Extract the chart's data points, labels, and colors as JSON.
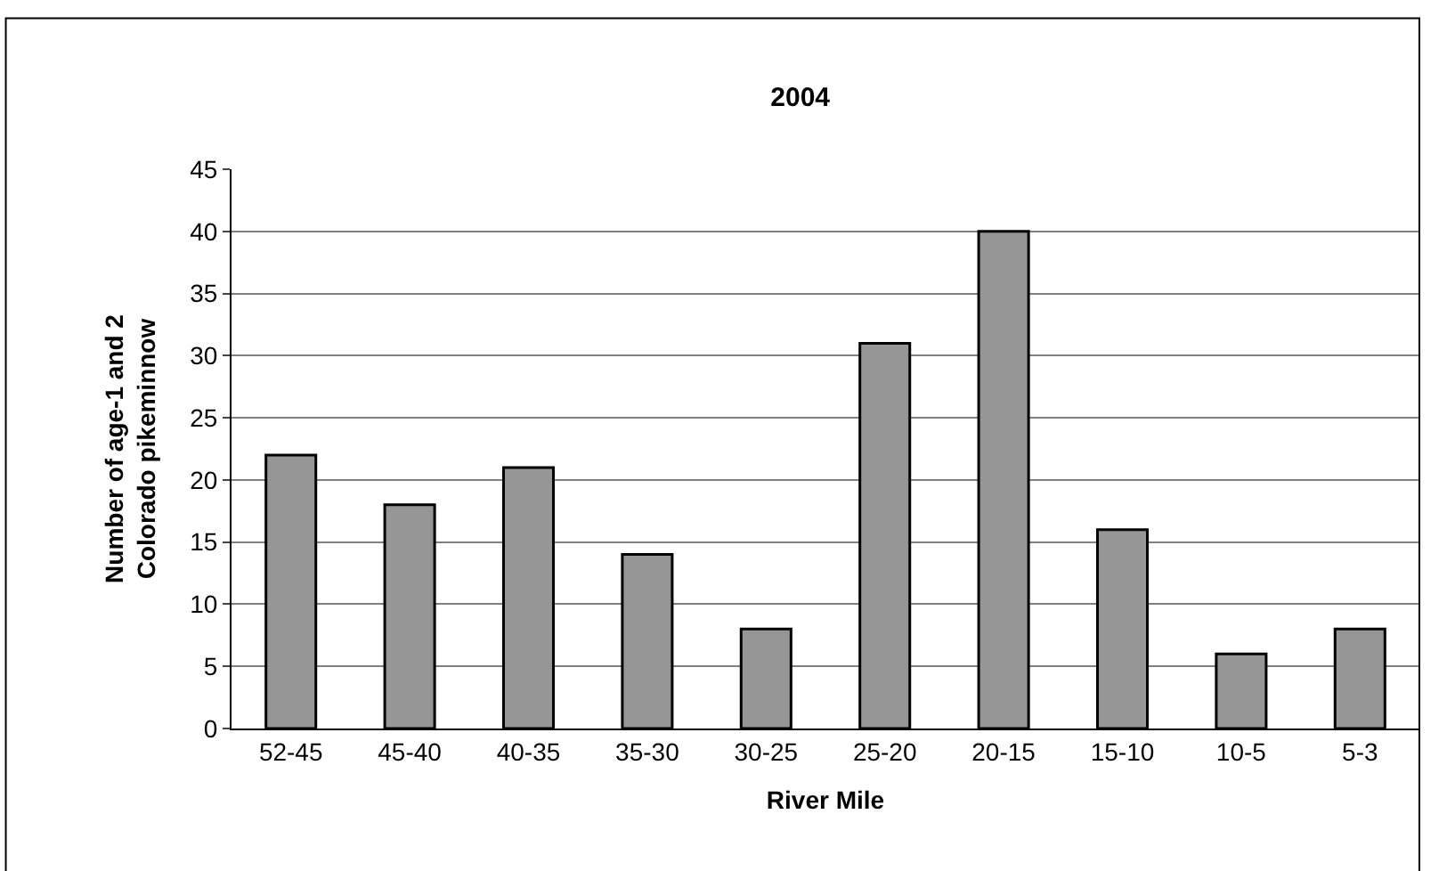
{
  "chart_data": {
    "type": "bar",
    "title": "2004",
    "xlabel": "River Mile",
    "ylabel": "Number of age-1 and 2\nColorado pikeminnow",
    "categories": [
      "52-45",
      "45-40",
      "40-35",
      "35-30",
      "30-25",
      "25-20",
      "20-15",
      "15-10",
      "10-5",
      "5-3"
    ],
    "values": [
      22,
      18,
      21,
      14,
      8,
      31,
      40,
      16,
      6,
      8
    ],
    "color": "#969696",
    "ylim": [
      0,
      45
    ],
    "yticks": [
      0,
      5,
      10,
      15,
      20,
      25,
      30,
      35,
      40,
      45
    ],
    "grid": "y",
    "legend": false
  }
}
